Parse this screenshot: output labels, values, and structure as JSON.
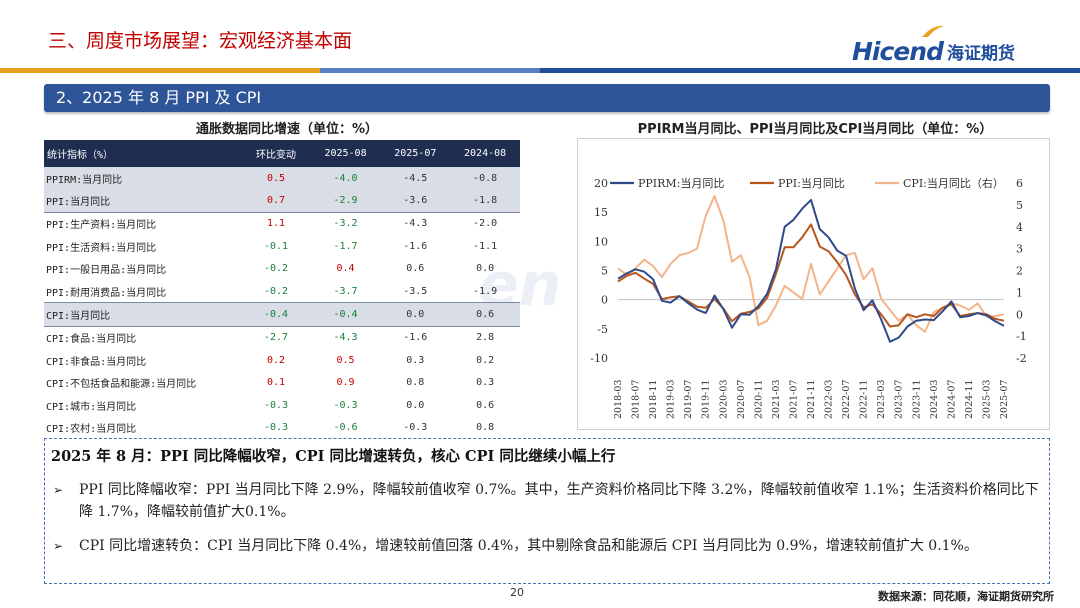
{
  "header": {
    "title": "三、周度市场展望：宏观经济基本面",
    "logo_en": "Hicend",
    "logo_cn": "海证期货"
  },
  "section": {
    "title": "2、2025 年 8 月 PPI 及 CPI"
  },
  "table": {
    "title": "通胀数据同比增速（单位：%）",
    "headers": [
      "统计指标（%）",
      "环比变动",
      "2025-08",
      "2025-07",
      "2024-08"
    ],
    "rows": [
      {
        "label": "PPIRM:当月同比",
        "chg": "0.5",
        "v1": "-4.0",
        "v2": "-4.5",
        "v3": "-0.8"
      },
      {
        "label": "PPI:当月同比",
        "chg": "0.7",
        "v1": "-2.9",
        "v2": "-3.6",
        "v3": "-1.8"
      },
      {
        "label": "PPI:生产资料:当月同比",
        "chg": "1.1",
        "v1": "-3.2",
        "v2": "-4.3",
        "v3": "-2.0"
      },
      {
        "label": "PPI:生活资料:当月同比",
        "chg": "-0.1",
        "v1": "-1.7",
        "v2": "-1.6",
        "v3": "-1.1"
      },
      {
        "label": "PPI:一般日用品:当月同比",
        "chg": "-0.2",
        "v1": "0.4",
        "v2": "0.6",
        "v3": "0.0"
      },
      {
        "label": "PPI:耐用消费品:当月同比",
        "chg": "-0.2",
        "v1": "-3.7",
        "v2": "-3.5",
        "v3": "-1.9"
      },
      {
        "label": "CPI:当月同比",
        "chg": "-0.4",
        "v1": "-0.4",
        "v2": "0.0",
        "v3": "0.6"
      },
      {
        "label": "CPI:食品:当月同比",
        "chg": "-2.7",
        "v1": "-4.3",
        "v2": "-1.6",
        "v3": "2.8"
      },
      {
        "label": "CPI:非食品:当月同比",
        "chg": "0.2",
        "v1": "0.5",
        "v2": "0.3",
        "v3": "0.2"
      },
      {
        "label": "CPI:不包括食品和能源:当月同比",
        "chg": "0.1",
        "v1": "0.9",
        "v2": "0.8",
        "v3": "0.3"
      },
      {
        "label": "CPI:城市:当月同比",
        "chg": "-0.3",
        "v1": "-0.3",
        "v2": "0.0",
        "v3": "0.6"
      },
      {
        "label": "CPI:农村:当月同比",
        "chg": "-0.3",
        "v1": "-0.6",
        "v2": "-0.3",
        "v3": "0.8"
      }
    ]
  },
  "chart_data": {
    "type": "line",
    "title": "PPIRM当月同比、PPI当月同比及CPI当月同比（单位：%）",
    "x": [
      "2018-03",
      "2018-05",
      "2018-07",
      "2018-09",
      "2018-11",
      "2019-01",
      "2019-03",
      "2019-05",
      "2019-07",
      "2019-09",
      "2019-11",
      "2020-01",
      "2020-03",
      "2020-05",
      "2020-07",
      "2020-09",
      "2020-11",
      "2021-01",
      "2021-03",
      "2021-05",
      "2021-07",
      "2021-09",
      "2021-11",
      "2022-01",
      "2022-03",
      "2022-05",
      "2022-07",
      "2022-09",
      "2022-11",
      "2023-01",
      "2023-03",
      "2023-05",
      "2023-07",
      "2023-09",
      "2023-11",
      "2024-01",
      "2024-03",
      "2024-05",
      "2024-07",
      "2024-09",
      "2024-11",
      "2025-01",
      "2025-03",
      "2025-05",
      "2025-07"
    ],
    "x_tick_labels": [
      "2018-03",
      "2018-07",
      "2018-11",
      "2019-03",
      "2019-07",
      "2019-11",
      "2020-03",
      "2020-07",
      "2020-11",
      "2021-03",
      "2021-07",
      "2021-11",
      "2022-03",
      "2022-07",
      "2022-11",
      "2023-03",
      "2023-07",
      "2023-11",
      "2024-03",
      "2024-07",
      "2024-11",
      "2025-03",
      "2025-07"
    ],
    "ylim_left": [
      -10,
      20
    ],
    "yticks_left": [
      -10,
      -5,
      0,
      5,
      10,
      15,
      20
    ],
    "ylim_right": [
      -2,
      6
    ],
    "yticks_right": [
      -2,
      -1,
      0,
      1,
      2,
      3,
      4,
      5,
      6
    ],
    "legend_position": "top",
    "grid": false,
    "series": [
      {
        "name": "PPIRM:当月同比",
        "axis": "left",
        "color": "#2f4a8a",
        "values": [
          3.6,
          4.5,
          5.2,
          4.8,
          3.5,
          -0.2,
          -0.5,
          0.6,
          -0.6,
          -1.7,
          -2.3,
          0.7,
          -1.6,
          -4.8,
          -2.5,
          -2.6,
          -1.1,
          1.0,
          5.2,
          12.5,
          13.7,
          15.6,
          17.1,
          12.1,
          10.7,
          8.4,
          7.5,
          1.9,
          -1.8,
          -0.1,
          -3.4,
          -7.2,
          -6.5,
          -4.6,
          -3.6,
          -3.4,
          -3.5,
          -2.0,
          -0.3,
          -3.0,
          -2.8,
          -2.3,
          -2.7,
          -3.7,
          -4.5
        ]
      },
      {
        "name": "PPI:当月同比",
        "axis": "left",
        "color": "#b8561e",
        "values": [
          3.1,
          4.1,
          4.6,
          3.6,
          2.7,
          0.1,
          0.4,
          0.6,
          -0.3,
          -1.2,
          -1.4,
          0.1,
          -1.5,
          -3.7,
          -2.4,
          -2.1,
          -1.5,
          0.3,
          4.4,
          9.0,
          9.0,
          10.7,
          12.9,
          9.1,
          8.3,
          6.4,
          4.2,
          0.9,
          -1.3,
          -0.8,
          -2.5,
          -4.6,
          -4.4,
          -2.5,
          -3.0,
          -2.5,
          -2.8,
          -1.4,
          -0.8,
          -2.8,
          -2.5,
          -2.3,
          -2.5,
          -3.3,
          -3.6
        ]
      },
      {
        "name": "CPI:当月同比（右）",
        "axis": "right",
        "color": "#f3b48a",
        "values": [
          2.1,
          1.8,
          2.1,
          2.5,
          2.2,
          1.7,
          2.3,
          2.7,
          2.8,
          3.0,
          4.5,
          5.4,
          4.3,
          2.4,
          2.7,
          1.7,
          -0.5,
          -0.3,
          0.4,
          1.3,
          1.0,
          0.7,
          2.3,
          0.9,
          1.5,
          2.1,
          2.7,
          2.8,
          1.6,
          2.1,
          0.7,
          0.2,
          -0.3,
          0.0,
          -0.5,
          -0.8,
          0.1,
          0.3,
          0.5,
          0.4,
          0.2,
          0.5,
          -0.1,
          -0.1,
          0.0
        ]
      }
    ]
  },
  "summary": {
    "headline": "2025 年 8 月：PPI 同比降幅收窄，CPI 同比增速转负，核心 CPI 同比继续小幅上行",
    "bullets": [
      "PPI 同比降幅收窄：PPI 当月同比下降 2.9%，降幅较前值收窄 0.7%。其中，生产资料价格同比下降 3.2%，降幅较前值收窄 1.1%；生活资料价格同比下降 1.7%，降幅较前值扩大0.1%。",
      "CPI 同比增速转负：CPI 当月同比下降 0.4%，增速较前值回落 0.4%，其中剔除食品和能源后 CPI 当月同比为 0.9%，增速较前值扩大 0.1%。"
    ]
  },
  "footer": {
    "page": "20",
    "source": "数据来源：同花顺，海证期货研究所"
  },
  "colors": {
    "header_red": "#c00000",
    "brand_blue": "#1f4e9c",
    "section_bar": "#2e5597",
    "table_header": "#1f2d50",
    "positive": "#c00000",
    "negative": "#1a7f37"
  }
}
